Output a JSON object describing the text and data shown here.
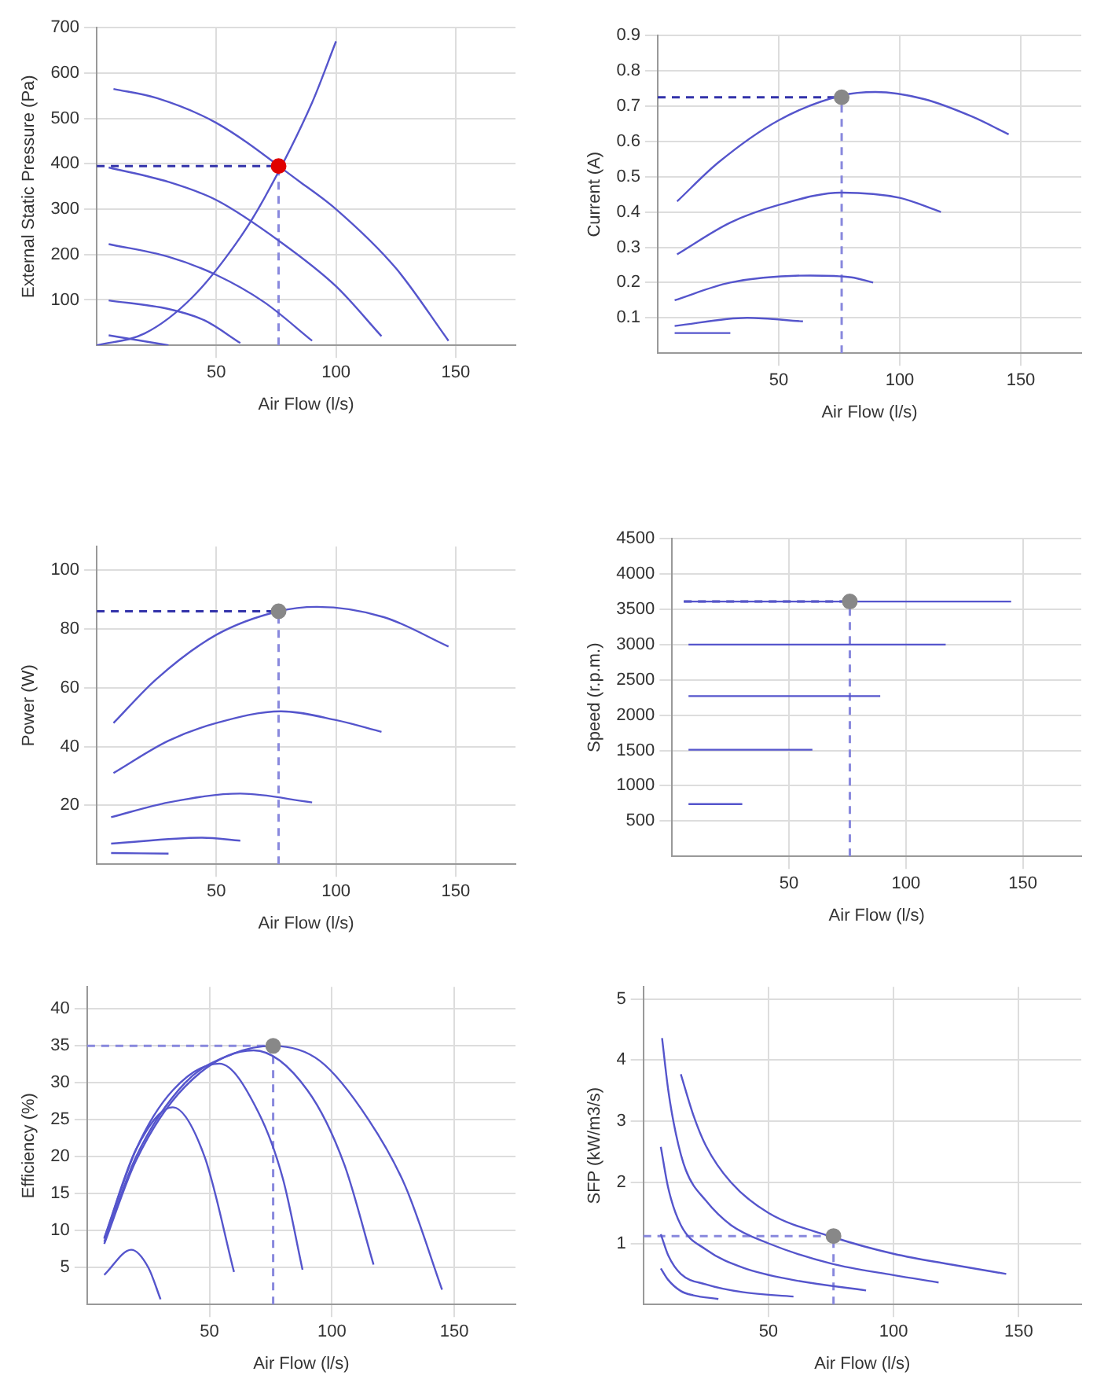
{
  "chart_data": [
    {
      "type": "line",
      "xlabel": "Air Flow (l/s)",
      "ylabel": "External Static Pressure (Pa)",
      "xlim": [
        0,
        175
      ],
      "xticks": [
        50,
        100,
        150
      ],
      "ylim": [
        0,
        700
      ],
      "yticks": [
        100,
        200,
        300,
        400,
        500,
        600,
        700
      ],
      "grid": true,
      "series": [
        {
          "color": "#5555cc",
          "x": [
            7,
            25,
            50,
            85,
            100,
            125,
            147
          ],
          "values": [
            565,
            545,
            490,
            360,
            300,
            170,
            10
          ]
        },
        {
          "color": "#5555cc",
          "x": [
            5,
            30,
            50,
            77,
            100,
            119
          ],
          "values": [
            392,
            360,
            320,
            227,
            130,
            20
          ]
        },
        {
          "color": "#5555cc",
          "x": [
            5,
            30,
            50,
            70,
            90
          ],
          "values": [
            223,
            195,
            155,
            95,
            10
          ]
        },
        {
          "color": "#5555cc",
          "x": [
            5,
            30,
            45,
            60
          ],
          "values": [
            99,
            80,
            55,
            5
          ]
        },
        {
          "color": "#5555cc",
          "x": [
            5,
            30
          ],
          "values": [
            22,
            0
          ]
        },
        {
          "color": "#5555cc",
          "x": [
            0,
            20,
            40,
            60,
            70,
            90,
            100
          ],
          "values": [
            0,
            26,
            106,
            238,
            324,
            535,
            670
          ]
        },
        {
          "color": "#3333aa",
          "line_style": "dashed",
          "x": [
            0,
            76
          ],
          "values": [
            395,
            395
          ]
        },
        {
          "color": "#8888dd",
          "line_style": "dashed",
          "x": [
            76,
            76
          ],
          "values": [
            0,
            395
          ]
        },
        {
          "type": "scatter",
          "marker": "circle",
          "color": "#e00000",
          "x": [
            76
          ],
          "values": [
            395
          ]
        }
      ]
    },
    {
      "type": "line",
      "xlabel": "Air Flow (l/s)",
      "ylabel": "Current (A)",
      "xlim": [
        0,
        175
      ],
      "xticks": [
        50,
        100,
        150
      ],
      "ylim": [
        0,
        0.9
      ],
      "yticks": [
        0.1,
        0.2,
        0.3,
        0.4,
        0.5,
        0.6,
        0.7,
        0.8,
        0.9
      ],
      "grid": true,
      "series": [
        {
          "color": "#5555cc",
          "x": [
            8,
            25,
            50,
            76,
            90,
            110,
            130,
            145
          ],
          "values": [
            0.43,
            0.54,
            0.66,
            0.73,
            0.74,
            0.72,
            0.67,
            0.62
          ]
        },
        {
          "color": "#5555cc",
          "x": [
            8,
            30,
            50,
            76,
            100,
            117
          ],
          "values": [
            0.28,
            0.37,
            0.42,
            0.455,
            0.44,
            0.4
          ]
        },
        {
          "color": "#5555cc",
          "x": [
            7,
            30,
            63,
            80,
            89
          ],
          "values": [
            0.15,
            0.2,
            0.22,
            0.215,
            0.2
          ]
        },
        {
          "color": "#5555cc",
          "x": [
            7,
            37,
            60
          ],
          "values": [
            0.077,
            0.1,
            0.09
          ]
        },
        {
          "color": "#5555cc",
          "x": [
            7,
            30
          ],
          "values": [
            0.057,
            0.057
          ]
        },
        {
          "color": "#3333aa",
          "line_style": "dashed",
          "x": [
            0,
            76
          ],
          "values": [
            0.725,
            0.725
          ]
        },
        {
          "color": "#8888dd",
          "line_style": "dashed",
          "x": [
            76,
            76
          ],
          "values": [
            0,
            0.725
          ]
        },
        {
          "type": "scatter",
          "marker": "circle",
          "color": "#888888",
          "x": [
            76
          ],
          "values": [
            0.725
          ]
        }
      ]
    },
    {
      "type": "line",
      "xlabel": "Air Flow (l/s)",
      "ylabel": "Power (W)",
      "xlim": [
        0,
        175
      ],
      "xticks": [
        50,
        100,
        150
      ],
      "ylim": [
        0,
        108
      ],
      "yticks": [
        20,
        40,
        60,
        80,
        100
      ],
      "grid": true,
      "series": [
        {
          "color": "#5555cc",
          "x": [
            7,
            25,
            50,
            76,
            92,
            120,
            147
          ],
          "values": [
            48,
            63,
            78,
            86,
            87.5,
            84,
            74
          ]
        },
        {
          "color": "#5555cc",
          "x": [
            7,
            30,
            50,
            77,
            100,
            119
          ],
          "values": [
            31,
            42,
            48,
            52,
            49,
            45
          ]
        },
        {
          "color": "#5555cc",
          "x": [
            6,
            30,
            60,
            90
          ],
          "values": [
            16,
            21,
            24,
            21
          ]
        },
        {
          "color": "#5555cc",
          "x": [
            6,
            44,
            60
          ],
          "values": [
            7,
            9,
            8
          ]
        },
        {
          "color": "#5555cc",
          "x": [
            6,
            30
          ],
          "values": [
            3.8,
            3.6
          ]
        },
        {
          "color": "#3333aa",
          "line_style": "dashed",
          "x": [
            0,
            76
          ],
          "values": [
            86,
            86
          ]
        },
        {
          "color": "#8888dd",
          "line_style": "dashed",
          "x": [
            76,
            76
          ],
          "values": [
            0,
            86
          ]
        },
        {
          "type": "scatter",
          "marker": "circle",
          "color": "#888888",
          "x": [
            76
          ],
          "values": [
            86
          ]
        }
      ]
    },
    {
      "type": "line",
      "xlabel": "Air Flow (l/s)",
      "ylabel": "Speed (r.p.m.)",
      "xlim": [
        0,
        175
      ],
      "xticks": [
        50,
        100,
        150
      ],
      "ylim": [
        0,
        4500
      ],
      "yticks": [
        500,
        1000,
        1500,
        2000,
        2500,
        3000,
        3500,
        4000,
        4500
      ],
      "grid": true,
      "series": [
        {
          "color": "#5555cc",
          "x": [
            5,
            145
          ],
          "values": [
            3610,
            3610
          ]
        },
        {
          "color": "#5555cc",
          "x": [
            7,
            117
          ],
          "values": [
            3000,
            3000
          ]
        },
        {
          "color": "#5555cc",
          "x": [
            7,
            89
          ],
          "values": [
            2270,
            2270
          ]
        },
        {
          "color": "#5555cc",
          "x": [
            7,
            60
          ],
          "values": [
            1510,
            1510
          ]
        },
        {
          "color": "#5555cc",
          "x": [
            7,
            30
          ],
          "values": [
            740,
            740
          ]
        },
        {
          "color": "#3333aa",
          "line_style": "dashed",
          "x": [
            5,
            76
          ],
          "values": [
            3610,
            3610
          ]
        },
        {
          "color": "#8888dd",
          "line_style": "dashed",
          "x": [
            76,
            76
          ],
          "values": [
            0,
            3610
          ]
        },
        {
          "type": "scatter",
          "marker": "circle",
          "color": "#888888",
          "x": [
            76
          ],
          "values": [
            3610
          ]
        }
      ]
    },
    {
      "type": "line",
      "xlabel": "Air Flow (l/s)",
      "ylabel": "Efficiency (%)",
      "xlim": [
        0,
        175
      ],
      "xticks": [
        50,
        100,
        150
      ],
      "ylim": [
        0,
        43
      ],
      "yticks": [
        5,
        10,
        15,
        20,
        25,
        30,
        35,
        40
      ],
      "grid": true,
      "series": [
        {
          "color": "#5555cc",
          "x": [
            7,
            20,
            40,
            60,
            76,
            95,
            115,
            130,
            145
          ],
          "values": [
            8.5,
            20,
            30,
            34,
            35,
            33,
            25,
            16,
            2
          ]
        },
        {
          "color": "#5555cc",
          "x": [
            7,
            20,
            40,
            68,
            90,
            105,
            117
          ],
          "values": [
            8.2,
            19.5,
            29.5,
            34.4,
            29,
            19,
            5.4
          ]
        },
        {
          "color": "#5555cc",
          "x": [
            7,
            20,
            35,
            54,
            70,
            80,
            88
          ],
          "values": [
            8.9,
            21,
            29,
            32.6,
            26,
            17,
            4.7
          ]
        },
        {
          "color": "#5555cc",
          "x": [
            7,
            20,
            35,
            48,
            60
          ],
          "values": [
            9,
            21,
            26.7,
            20,
            4.4
          ]
        },
        {
          "color": "#5555cc",
          "x": [
            7,
            18,
            25,
            30
          ],
          "values": [
            4,
            7.4,
            5,
            0.7
          ]
        },
        {
          "color": "#8888dd",
          "line_style": "dashed",
          "x": [
            0,
            76
          ],
          "values": [
            35,
            35
          ]
        },
        {
          "color": "#8888dd",
          "line_style": "dashed",
          "x": [
            76,
            76
          ],
          "values": [
            0,
            35
          ]
        },
        {
          "type": "scatter",
          "marker": "circle",
          "color": "#888888",
          "x": [
            76
          ],
          "values": [
            35
          ]
        }
      ]
    },
    {
      "type": "line",
      "xlabel": "Air Flow (l/s)",
      "ylabel": "SFP (kW/m3/s)",
      "xlim": [
        0,
        175
      ],
      "xticks": [
        50,
        100,
        150
      ],
      "ylim": [
        0,
        5.2
      ],
      "yticks": [
        1,
        2,
        3,
        4,
        5
      ],
      "grid": true,
      "series": [
        {
          "color": "#5555cc",
          "x": [
            15,
            20,
            25,
            35,
            50,
            76,
            100,
            125,
            145
          ],
          "values": [
            3.77,
            3.1,
            2.6,
            2.0,
            1.5,
            1.1,
            0.83,
            0.64,
            0.5
          ]
        },
        {
          "color": "#5555cc",
          "x": [
            7.5,
            10,
            13,
            17,
            25,
            35,
            50,
            75,
            100,
            118
          ],
          "values": [
            4.36,
            3.5,
            2.8,
            2.2,
            1.7,
            1.3,
            1.0,
            0.67,
            0.48,
            0.36
          ]
        },
        {
          "color": "#5555cc",
          "x": [
            7,
            10,
            15,
            25,
            40,
            60,
            89
          ],
          "values": [
            2.58,
            1.9,
            1.3,
            0.9,
            0.6,
            0.4,
            0.23
          ]
        },
        {
          "color": "#5555cc",
          "x": [
            7,
            10,
            15,
            25,
            40,
            60
          ],
          "values": [
            1.15,
            0.8,
            0.5,
            0.33,
            0.2,
            0.13
          ]
        },
        {
          "color": "#5555cc",
          "x": [
            7,
            10,
            15,
            20,
            30
          ],
          "values": [
            0.59,
            0.4,
            0.22,
            0.15,
            0.09
          ]
        },
        {
          "color": "#8888dd",
          "line_style": "dashed",
          "x": [
            0,
            76
          ],
          "values": [
            1.12,
            1.12
          ]
        },
        {
          "color": "#8888dd",
          "line_style": "dashed",
          "x": [
            76,
            76
          ],
          "values": [
            0,
            1.12
          ]
        },
        {
          "type": "scatter",
          "marker": "circle",
          "color": "#888888",
          "x": [
            76
          ],
          "values": [
            1.12
          ]
        }
      ]
    }
  ]
}
